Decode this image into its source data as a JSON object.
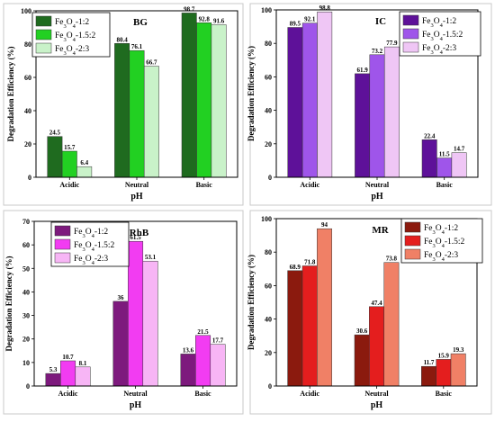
{
  "chart_data": [
    {
      "type": "bar",
      "title": "BG",
      "xlabel": "pH",
      "ylabel": "Degradation Efficiency (%)",
      "categories": [
        "Acidic",
        "Neutral",
        "Basic"
      ],
      "ylim": [
        0,
        100
      ],
      "yticks": [
        0,
        20,
        40,
        60,
        80,
        100
      ],
      "legend_position": "top-left",
      "series": [
        {
          "name": "Fe3O4-1:2",
          "color": "#1f6b1f",
          "values": [
            24.5,
            80.4,
            98.7
          ]
        },
        {
          "name": "Fe3O4-1.5:2",
          "color": "#22d022",
          "values": [
            15.7,
            76.1,
            92.8
          ]
        },
        {
          "name": "Fe3O4-2:3",
          "color": "#c9f2c9",
          "values": [
            6.4,
            66.7,
            91.6
          ]
        }
      ]
    },
    {
      "type": "bar",
      "title": "IC",
      "xlabel": "pH",
      "ylabel": "Degradation Efficiency (%)",
      "categories": [
        "Acidic",
        "Neutral",
        "Basic"
      ],
      "ylim": [
        0,
        100
      ],
      "yticks": [
        0,
        20,
        40,
        60,
        80,
        100
      ],
      "legend_position": "top-right",
      "series": [
        {
          "name": "Fe3O4-1:2",
          "color": "#5e1199",
          "values": [
            89.5,
            61.9,
            22.4
          ]
        },
        {
          "name": "Fe3O4-1.5:2",
          "color": "#9f55ea",
          "values": [
            92.1,
            73.2,
            11.5
          ]
        },
        {
          "name": "Fe3O4-2:3",
          "color": "#efc6f5",
          "values": [
            98.8,
            77.9,
            14.7
          ]
        }
      ]
    },
    {
      "type": "bar",
      "title": "RhB",
      "xlabel": "pH",
      "ylabel": "Degradation Efficiency (%)",
      "categories": [
        "Acidic",
        "Neutral",
        "Basic"
      ],
      "ylim": [
        0,
        70
      ],
      "yticks": [
        0,
        10,
        20,
        30,
        40,
        50,
        60,
        70
      ],
      "legend_position": "top-left",
      "series": [
        {
          "name": "Fe3O4-1:2",
          "color": "#7d1a7d",
          "values": [
            5.3,
            36,
            13.6
          ]
        },
        {
          "name": "Fe3O4-1.5:2",
          "color": "#f23cf2",
          "values": [
            10.7,
            61.5,
            21.5
          ]
        },
        {
          "name": "Fe3O4-2:3",
          "color": "#f7b5f5",
          "values": [
            8.1,
            53.1,
            17.7
          ]
        }
      ]
    },
    {
      "type": "bar",
      "title": "MR",
      "xlabel": "pH",
      "ylabel": "Degradation Efficiency (%)",
      "categories": [
        "Acidic",
        "Neutral",
        "Basic"
      ],
      "ylim": [
        0,
        100
      ],
      "yticks": [
        0,
        20,
        40,
        60,
        80,
        100
      ],
      "legend_position": "top-right",
      "series": [
        {
          "name": "Fe3O4-1:2",
          "color": "#8b1a0e",
          "values": [
            68.9,
            30.6,
            11.7
          ]
        },
        {
          "name": "Fe3O4-1.5:2",
          "color": "#e41e1e",
          "values": [
            71.8,
            47.4,
            15.9
          ]
        },
        {
          "name": "Fe3O4-2:3",
          "color": "#f08066",
          "values": [
            94,
            73.8,
            19.3
          ]
        }
      ]
    }
  ]
}
